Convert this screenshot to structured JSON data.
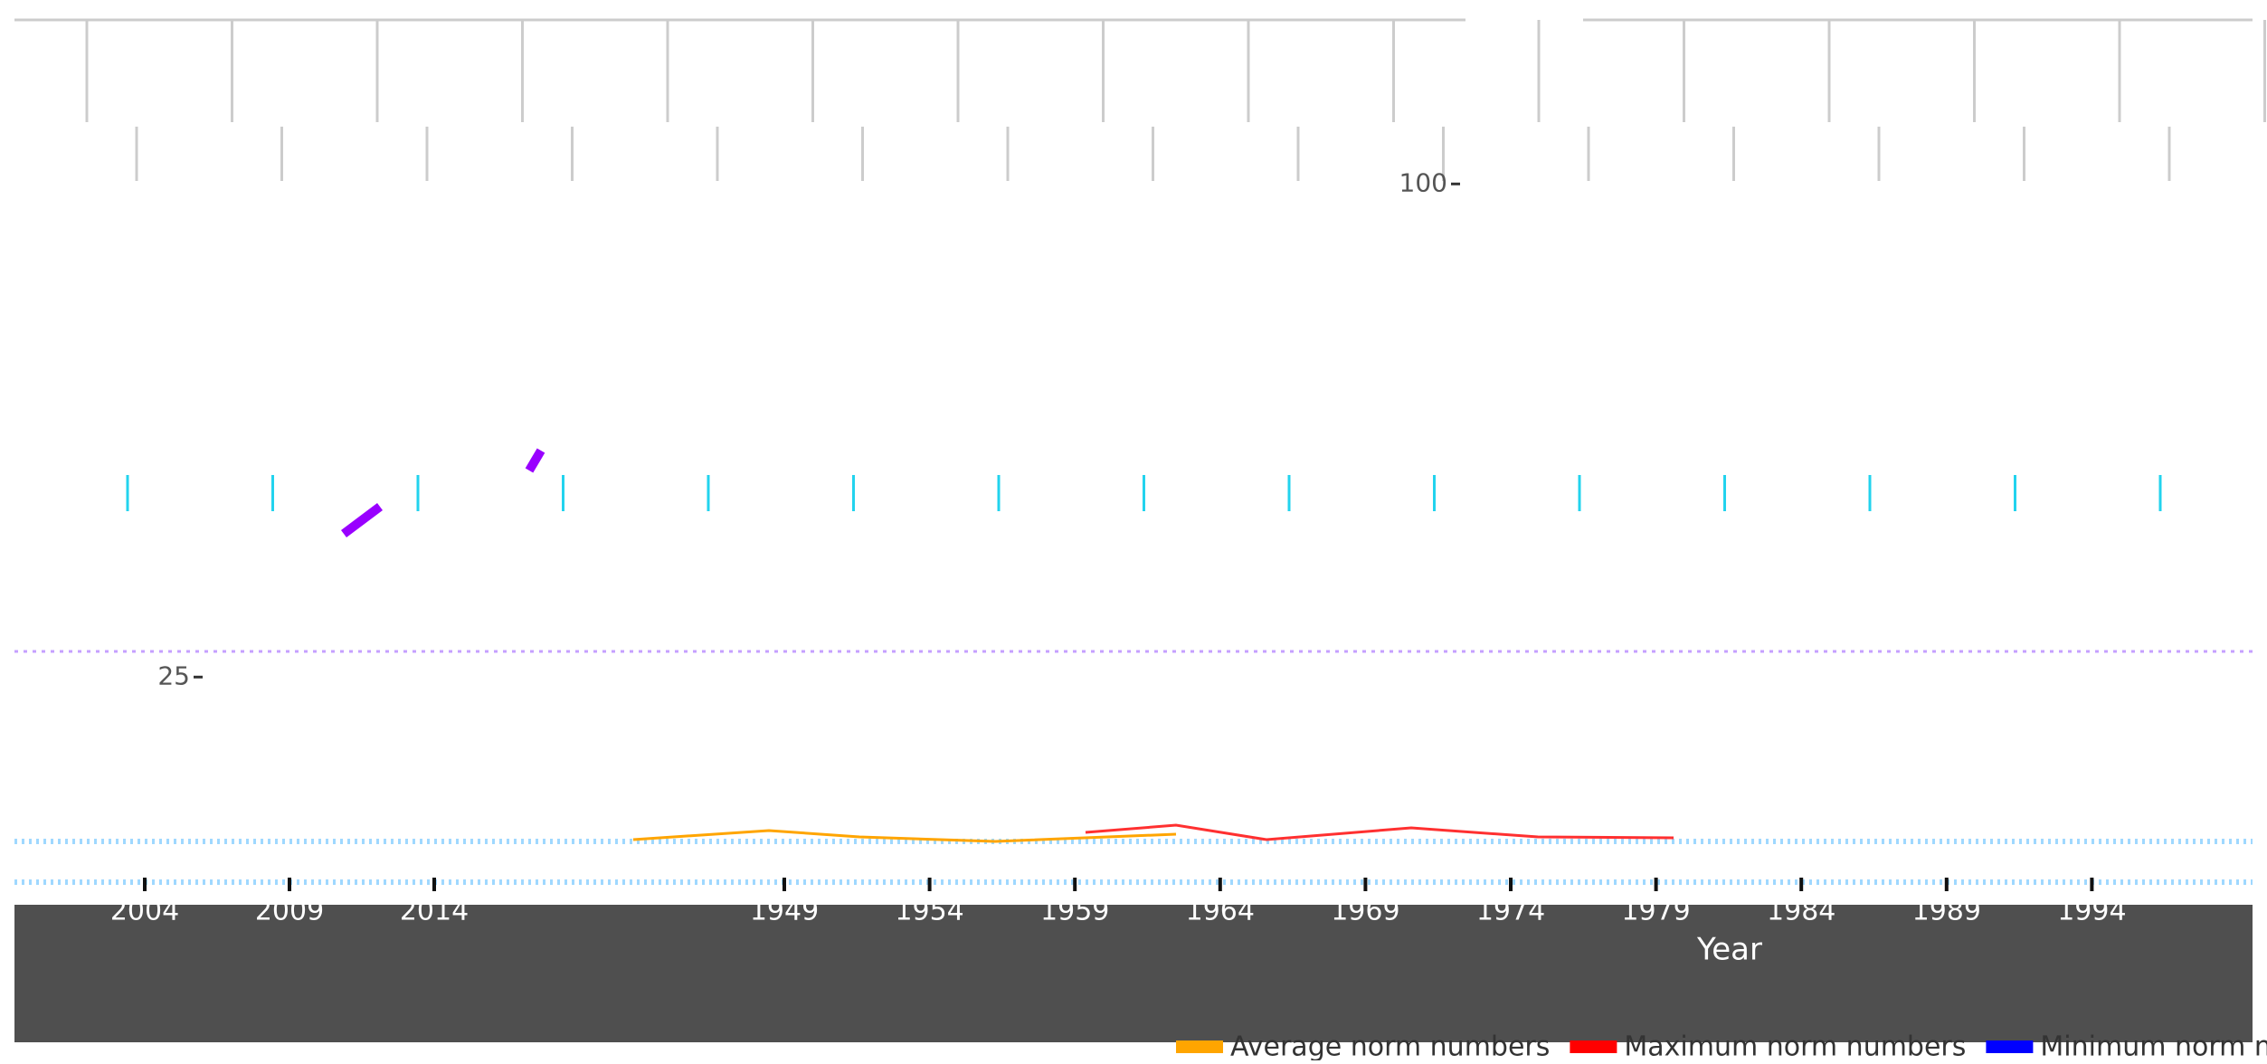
{
  "axis": {
    "y_ticks": [
      100,
      25
    ],
    "x_tick_labels": [
      "2004",
      "2009",
      "2014",
      "1949",
      "1954",
      "1959",
      "1964",
      "1969",
      "1974",
      "1979",
      "1984",
      "1989",
      "1994"
    ],
    "x_label": "Year"
  },
  "legend": [
    {
      "name": "Average norm numbers",
      "color": "#ffa500"
    },
    {
      "name": "Maximum norm numbers",
      "color": "#ff0000"
    },
    {
      "name": "Minimum norm numbers",
      "color": "#0000ff"
    }
  ]
}
